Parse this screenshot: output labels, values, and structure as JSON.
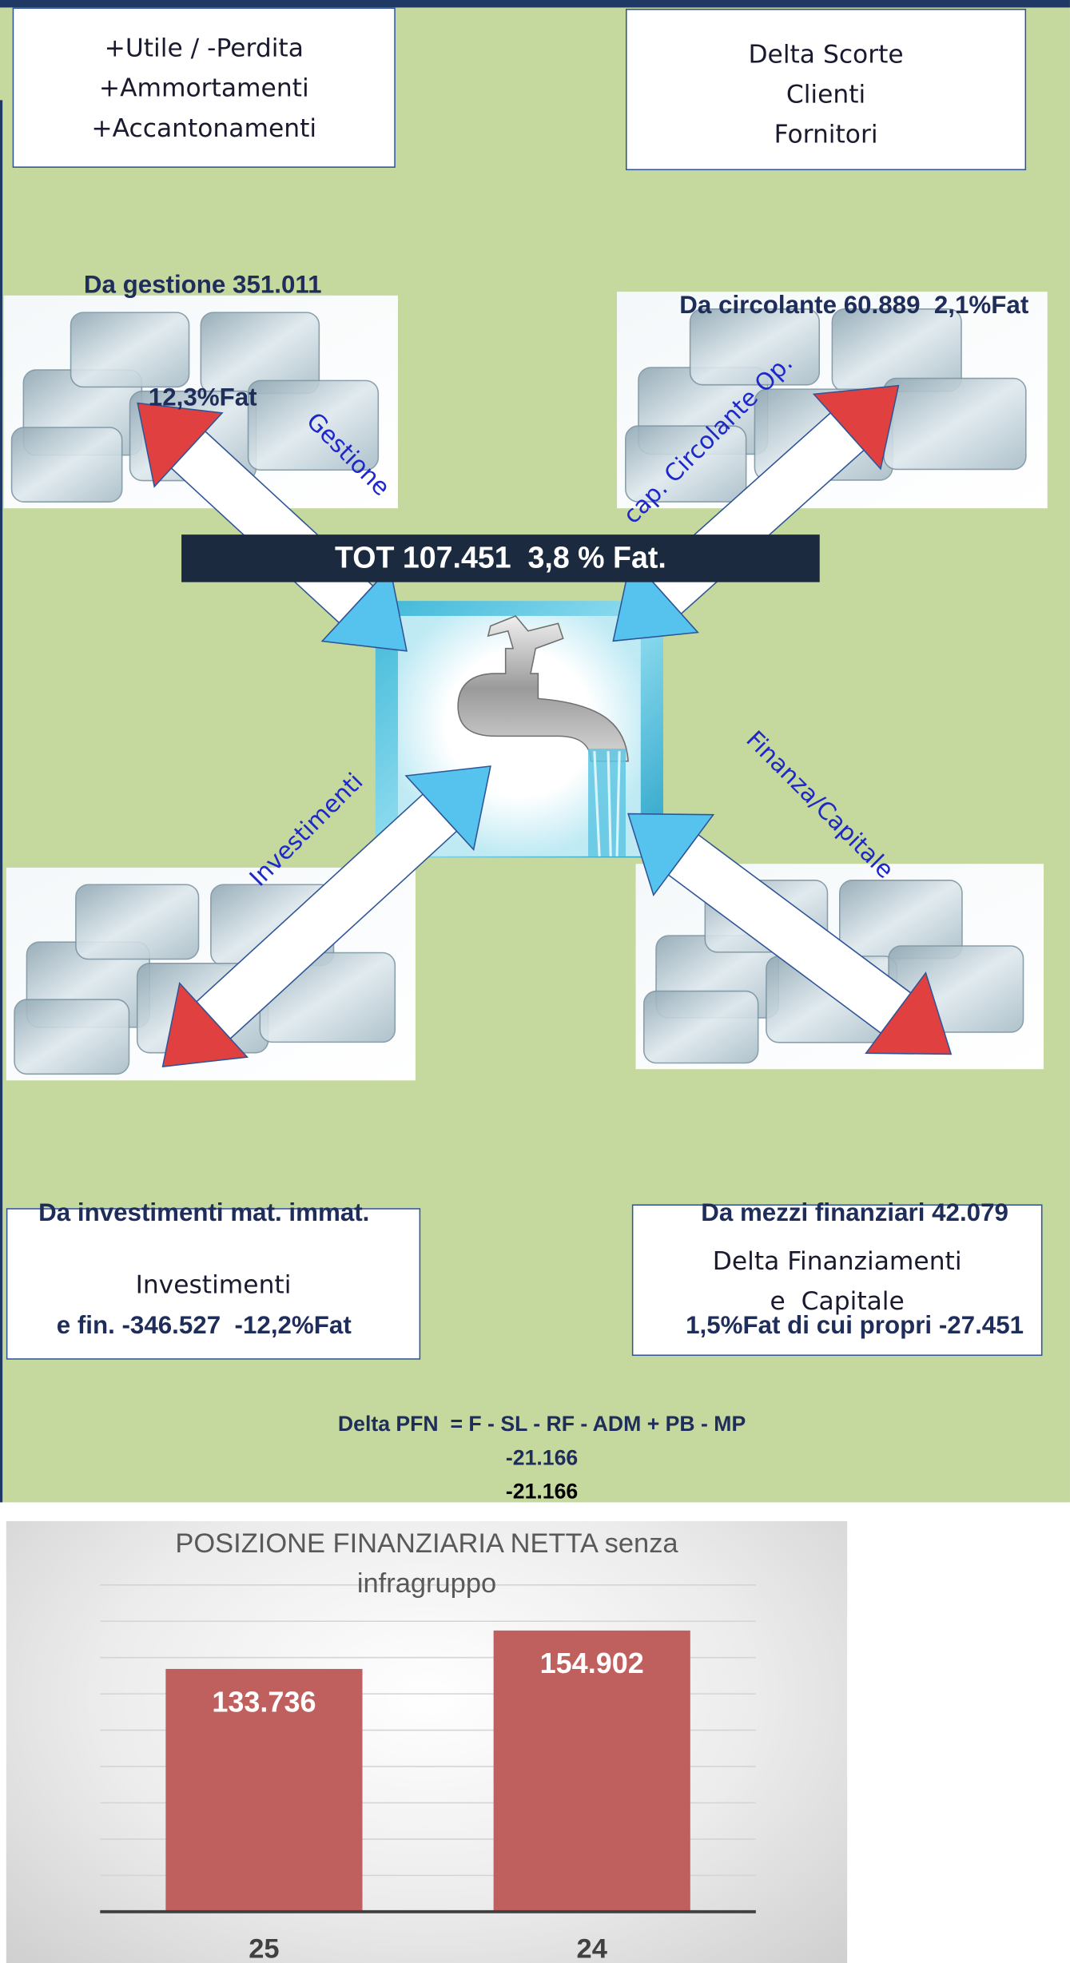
{
  "boxes": [
    {
      "lines": [
        "+Utile / -Perdita",
        "+Ammortamenti",
        "+Accantonamenti"
      ]
    },
    {
      "lines": [
        "Delta Scorte",
        "Clienti",
        "Fornitori"
      ]
    },
    {
      "lines": [
        "Investimenti"
      ]
    },
    {
      "lines": [
        "Delta Finanziamenti",
        "e  Capitale"
      ]
    }
  ],
  "flows": [
    {
      "label": "Gestione",
      "summary": [
        "Da gestione 351.011",
        "12,3%Fat"
      ]
    },
    {
      "label": "cap. Circolante Op.",
      "summary": [
        "Da circolante 60.889  2,1%Fat"
      ]
    },
    {
      "label": "Investimenti",
      "summary": [
        "Da investimenti mat. immat.",
        "e fin. -346.527  -12,2%Fat"
      ]
    },
    {
      "label": "Finanza/Capitale",
      "summary": [
        "Da mezzi finanziari 42.079",
        "1,5%Fat di cui propri -27.451"
      ]
    }
  ],
  "total": "TOT 107.451  3,8 % Fat.",
  "formula": {
    "expression": "Delta PFN  = F - SL - RF - ADM + PB - MP",
    "results": [
      "-21.166",
      "-21.166"
    ]
  },
  "chart_data": {
    "type": "bar",
    "title": "POSIZIONE FINANZIARIA NETTA senza infragruppo",
    "categories": [
      "25",
      "24"
    ],
    "values": [
      133736,
      154902
    ],
    "value_labels": [
      "133.736",
      "154.902"
    ],
    "color": "#c0605e",
    "ylim": [
      0,
      180000
    ],
    "yticks": [
      0,
      20000,
      40000,
      60000,
      80000,
      100000,
      120000,
      140000,
      160000,
      180000
    ],
    "grid": true
  }
}
